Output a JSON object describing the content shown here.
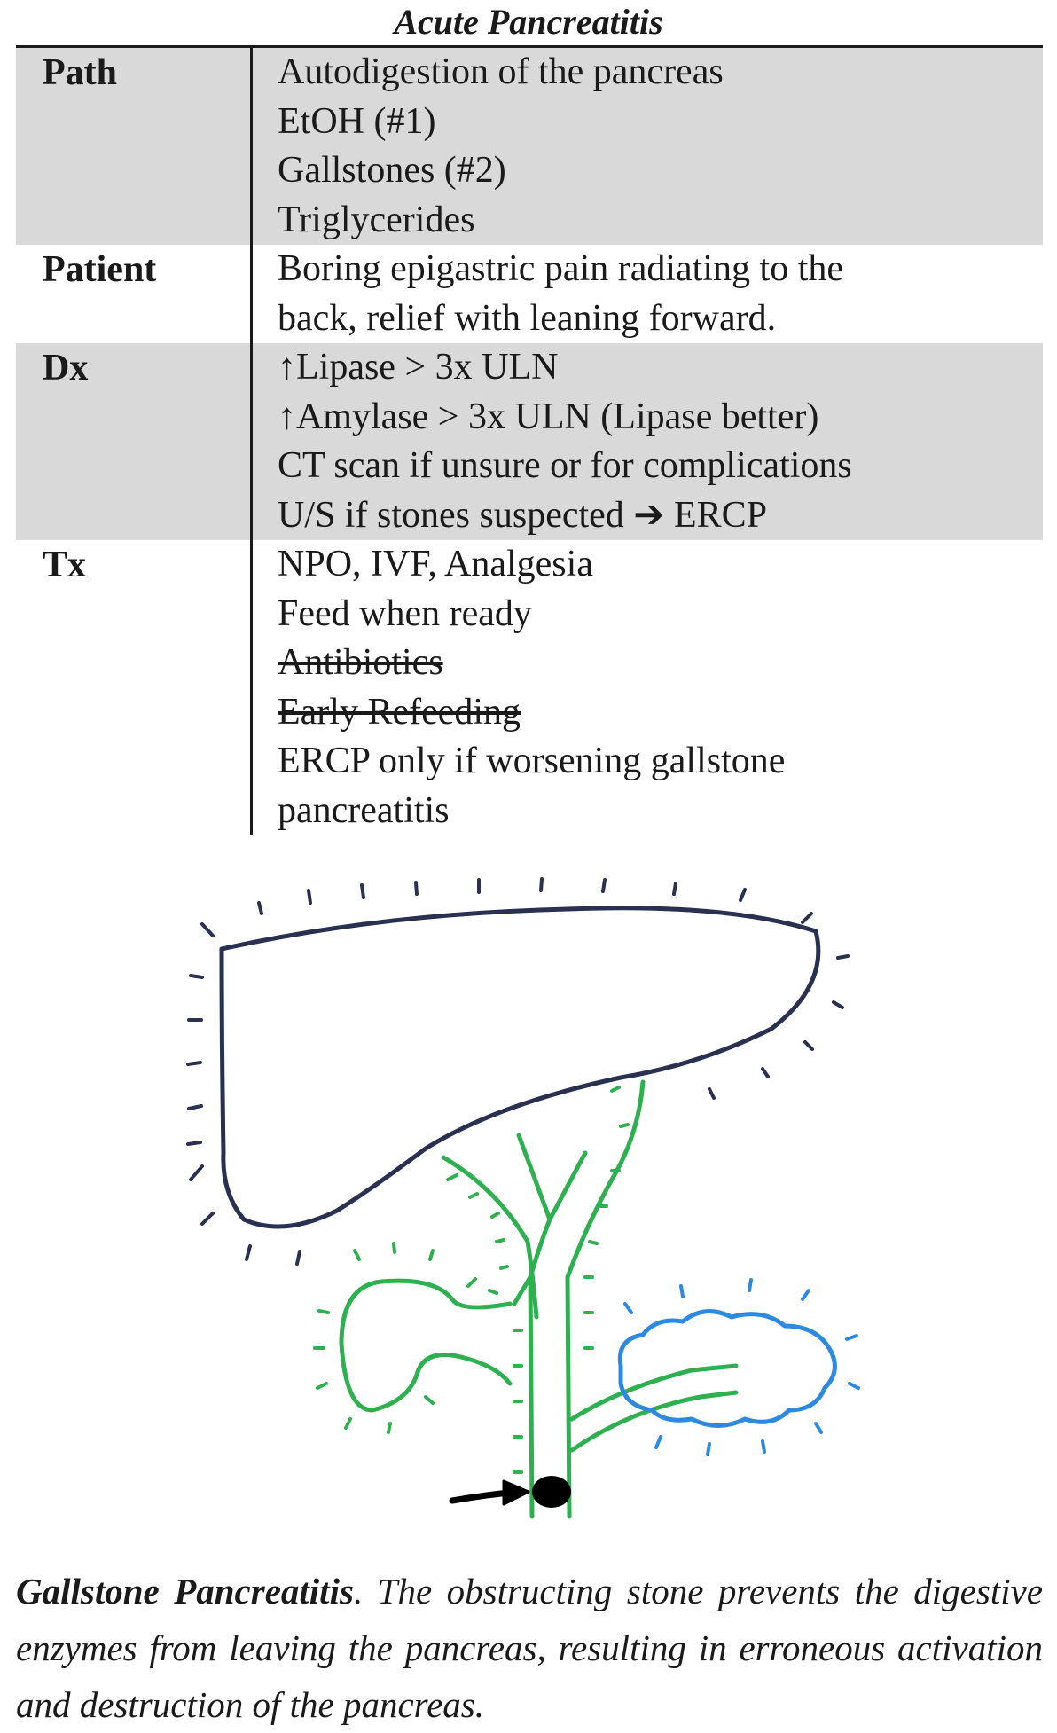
{
  "title": "Acute Pancreatitis",
  "rows": [
    {
      "label": "Path",
      "shaded": true,
      "lines": [
        {
          "text": "Autodigestion of the pancreas"
        },
        {
          "text": "EtOH (#1)"
        },
        {
          "text": "Gallstones (#2)"
        },
        {
          "text": "Triglycerides"
        }
      ]
    },
    {
      "label": "Patient",
      "shaded": false,
      "lines": [
        {
          "text": "Boring epigastric pain radiating to the"
        },
        {
          "text": "back, relief with leaning forward."
        }
      ]
    },
    {
      "label": "Dx",
      "shaded": true,
      "lines": [
        {
          "text": "↑Lipase > 3x ULN"
        },
        {
          "text": "↑Amylase > 3x ULN (Lipase better)"
        },
        {
          "text": "CT scan if unsure or for complications"
        },
        {
          "text": "U/S if stones suspected ➔ ERCP"
        }
      ]
    },
    {
      "label": "Tx",
      "shaded": false,
      "lines": [
        {
          "text": "NPO, IVF, Analgesia"
        },
        {
          "text": "Feed when ready"
        },
        {
          "text": "Antibiotics",
          "struck": true
        },
        {
          "text": "Early Refeeding",
          "struck": true
        },
        {
          "text": "ERCP only if worsening gallstone"
        },
        {
          "text": "pancreatitis"
        }
      ]
    }
  ],
  "caption": {
    "bold": "Gallstone Pancreatitis",
    "text": ". The obstructing stone prevents the digestive enzymes from leaving the pancreas, resulting in erroneous activation and destruction of the pancreas."
  },
  "colors": {
    "liver": "#2a3050",
    "ducts": "#2fb050",
    "pancreas": "#2d8ae0",
    "stone": "#000000",
    "row_shade": "#d9d9d9"
  }
}
